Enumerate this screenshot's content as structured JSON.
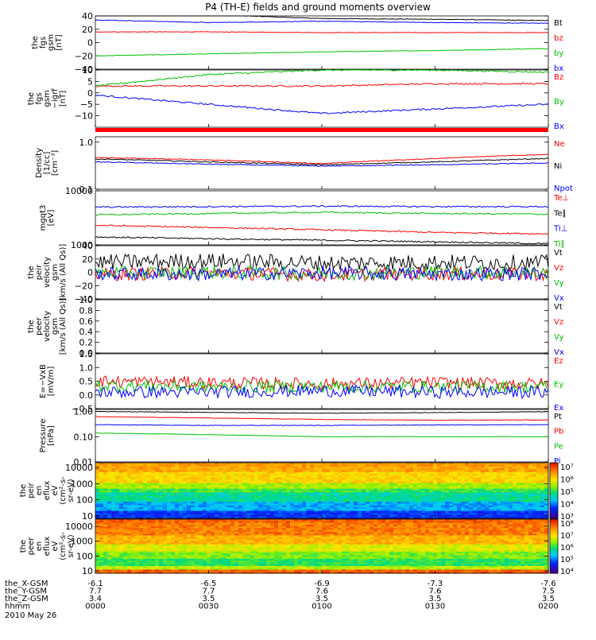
{
  "title": "P4 (TH-E) fields and ground moments overview",
  "date_label": "2010 May 26",
  "orbit_table": {
    "rows": [
      {
        "label": "the_X-GSM",
        "values": [
          "-6.1",
          "-6.5",
          "-6.9",
          "-7.3",
          "-7.6"
        ]
      },
      {
        "label": "the_Y-GSM",
        "values": [
          "7.7",
          "7.7",
          "7.6",
          "7.6",
          "7.5"
        ]
      },
      {
        "label": "the_Z-GSM",
        "values": [
          "3.4",
          "3.5",
          "3.5",
          "3.5",
          "3.5"
        ]
      },
      {
        "label": "hhmm",
        "values": [
          "0000",
          "0030",
          "0100",
          "0130",
          "0200"
        ]
      }
    ]
  },
  "chart_data": [
    {
      "type": "line",
      "panel": "fgs_gsm",
      "ylabel_lines": [
        "the",
        "fgs",
        "gsm",
        "[nT]"
      ],
      "ylim": [
        -40,
        40
      ],
      "yticks": [
        "40",
        "20",
        "0",
        "−20",
        "−40"
      ],
      "ytick_values": [
        40,
        20,
        0,
        -20,
        -40
      ],
      "x": [
        0,
        30,
        60,
        90,
        120
      ],
      "series": [
        {
          "name": "Bt",
          "color": "#000000",
          "values": [
            44,
            42,
            36,
            35,
            33
          ]
        },
        {
          "name": "bz",
          "color": "#ff0000",
          "values": [
            16,
            16,
            15,
            15,
            15
          ]
        },
        {
          "name": "by",
          "color": "#00c000",
          "values": [
            -20,
            -17,
            -14,
            -12,
            -9
          ]
        },
        {
          "name": "bx",
          "color": "#0000ff",
          "values": [
            34,
            30,
            32,
            30,
            29
          ]
        }
      ]
    },
    {
      "type": "line",
      "panel": "fgs_gsm_igrf",
      "ylabel_lines": [
        "the",
        "fgs",
        "gsm",
        "−igrf",
        "[nT]"
      ],
      "ylim": [
        -15,
        10
      ],
      "yticks": [
        "10",
        "5",
        "0",
        "−5",
        "−10"
      ],
      "ytick_values": [
        10,
        5,
        0,
        -5,
        -10
      ],
      "x": [
        0,
        30,
        60,
        90,
        120
      ],
      "series": [
        {
          "name": "Bz",
          "color": "#ff0000",
          "values": [
            3,
            3,
            3,
            4,
            4
          ]
        },
        {
          "name": "By",
          "color": "#00c000",
          "values": [
            3,
            8,
            10,
            10,
            9
          ]
        },
        {
          "name": "Bx",
          "color": "#0000ff",
          "values": [
            -1,
            -5,
            -9,
            -7,
            -5
          ]
        }
      ]
    },
    {
      "type": "line",
      "panel": "density",
      "ylabel_lines": [
        "Density",
        "[1/cc]",
        "[cm⁻³]"
      ],
      "yscale": "log",
      "ylim": [
        0.1,
        1.3
      ],
      "yticks": [
        "1.0",
        "0.1"
      ],
      "ytick_values": [
        1.0,
        0.1
      ],
      "x": [
        0,
        30,
        60,
        90,
        120
      ],
      "series": [
        {
          "name": "Ne",
          "color": "#ff0000",
          "values": [
            0.47,
            0.42,
            0.35,
            0.45,
            0.55
          ]
        },
        {
          "name": "Ni",
          "color": "#000000",
          "values": [
            0.44,
            0.38,
            0.33,
            0.38,
            0.45
          ]
        },
        {
          "name": "Npot",
          "color": "#0000ff",
          "values": [
            0.38,
            0.34,
            0.31,
            0.33,
            0.36
          ]
        }
      ]
    },
    {
      "type": "line",
      "panel": "temperature",
      "ylabel_lines": [
        "mgqt3",
        "[eV]"
      ],
      "yscale": "log",
      "ylim": [
        1000,
        10000
      ],
      "yticks": [
        "10000",
        "1000"
      ],
      "ytick_values": [
        10000,
        1000
      ],
      "x": [
        0,
        30,
        60,
        90,
        120
      ],
      "series": [
        {
          "name": "Te⊥",
          "color": "#ff0000",
          "values": [
            2300,
            2100,
            1900,
            1700,
            1600
          ]
        },
        {
          "name": "Te∥",
          "color": "#000000",
          "values": [
            1400,
            1300,
            1220,
            1140,
            1050
          ]
        },
        {
          "name": "Ti⊥",
          "color": "#0000ff",
          "values": [
            5000,
            5100,
            5200,
            5100,
            5100
          ]
        },
        {
          "name": "Ti∥",
          "color": "#00c000",
          "values": [
            3600,
            3800,
            4000,
            3800,
            3700
          ]
        }
      ]
    },
    {
      "type": "line",
      "panel": "peir_velocity",
      "ylabel_lines": [
        "the",
        "peir",
        "velocity",
        "gsm",
        "[km/s (All Qs)]"
      ],
      "ylim": [
        -40,
        40
      ],
      "yticks": [
        "40",
        "20",
        "0",
        "−20",
        "−40"
      ],
      "ytick_values": [
        40,
        20,
        0,
        -20,
        -40
      ],
      "x": [
        0,
        30,
        60,
        90,
        120
      ],
      "series": [
        {
          "name": "Vt",
          "color": "#000000",
          "values": [
            15,
            17,
            14,
            15,
            14
          ]
        },
        {
          "name": "Vz",
          "color": "#ff0000",
          "values": [
            -3,
            -1,
            -4,
            -2,
            -3
          ]
        },
        {
          "name": "Vy",
          "color": "#00c000",
          "values": [
            -1,
            0,
            -2,
            0,
            -1
          ]
        },
        {
          "name": "Vx",
          "color": "#0000ff",
          "values": [
            -2,
            -3,
            -1,
            -3,
            -2
          ]
        }
      ]
    },
    {
      "type": "line",
      "panel": "peer_velocity",
      "ylabel_lines": [
        "the",
        "peer",
        "velocity",
        "gsm",
        "[km/s (All Qs)]"
      ],
      "ylim": [
        0,
        1
      ],
      "yticks": [
        "1.0",
        "0.8",
        "0.6",
        "0.4",
        "0.2",
        "0.0"
      ],
      "ytick_values": [
        1,
        0.8,
        0.6,
        0.4,
        0.2,
        0
      ],
      "series": [
        {
          "name": "Vt",
          "color": "#000000",
          "values": []
        },
        {
          "name": "Vz",
          "color": "#ff0000",
          "values": []
        },
        {
          "name": "Vy",
          "color": "#00c000",
          "values": []
        },
        {
          "name": "Vx",
          "color": "#0000ff",
          "values": []
        }
      ]
    },
    {
      "type": "line",
      "panel": "e_field",
      "ylabel_lines": [
        "E=−VxB",
        "[mV/m]"
      ],
      "ylim": [
        -0.5,
        1.5
      ],
      "yticks": [
        "1.5",
        "1.0",
        "0.5",
        "0.0",
        "−0.5"
      ],
      "ytick_values": [
        1.5,
        1.0,
        0.5,
        0,
        -0.5
      ],
      "x": [
        0,
        30,
        60,
        90,
        120
      ],
      "series": [
        {
          "name": "Ez",
          "color": "#ff0000",
          "values": [
            0.5,
            0.45,
            0.4,
            0.45,
            0.4
          ]
        },
        {
          "name": "Ey",
          "color": "#00c000",
          "values": [
            0.35,
            0.3,
            0.3,
            0.3,
            0.3
          ]
        },
        {
          "name": "Ex",
          "color": "#0000ff",
          "values": [
            0.1,
            0.1,
            0.15,
            0.1,
            0.1
          ]
        }
      ]
    },
    {
      "type": "line",
      "panel": "pressure",
      "ylabel_lines": [
        "Pressure",
        "[nPa]"
      ],
      "yscale": "log",
      "ylim": [
        0.01,
        1.2
      ],
      "yticks": [
        "1.00",
        "0.10",
        "0.01"
      ],
      "ytick_values": [
        1.0,
        0.1,
        0.01
      ],
      "x": [
        0,
        30,
        60,
        90,
        120
      ],
      "series": [
        {
          "name": "Pt",
          "color": "#000000",
          "values": [
            1.0,
            0.92,
            0.85,
            0.9,
            0.98
          ]
        },
        {
          "name": "Pb",
          "color": "#ff0000",
          "values": [
            0.62,
            0.55,
            0.48,
            0.45,
            0.46
          ]
        },
        {
          "name": "Pe",
          "color": "#00c000",
          "values": [
            0.14,
            0.12,
            0.1,
            0.1,
            0.1
          ]
        },
        {
          "name": "Pi",
          "color": "#0000ff",
          "values": [
            0.3,
            0.28,
            0.28,
            0.29,
            0.3
          ]
        }
      ]
    },
    {
      "type": "heatmap",
      "panel": "peir_eflux",
      "ylabel_lines": [
        "the",
        "peir",
        "en",
        "eflux",
        "eV",
        "(cm²-s-",
        "sr-eV)"
      ],
      "yscale": "log",
      "ylim": [
        7,
        20000
      ],
      "yticks": [
        "10000",
        "1000",
        "100",
        "10"
      ],
      "ytick_values": [
        10000,
        1000,
        100,
        10
      ],
      "colorbar_labels": [
        "10⁷",
        "10⁶",
        "10⁵",
        "10⁴",
        "10³"
      ]
    },
    {
      "type": "heatmap",
      "panel": "peer_eflux",
      "ylabel_lines": [
        "the",
        "peer",
        "en",
        "eflux",
        "eV",
        "(cm²-s-",
        "sr-eV)"
      ],
      "yscale": "log",
      "ylim": [
        7,
        30000
      ],
      "yticks": [
        "10000",
        "1000",
        "100",
        "10"
      ],
      "ytick_values": [
        10000,
        1000,
        100,
        10
      ],
      "colorbar_labels": [
        "10⁸",
        "10⁷",
        "10⁶",
        "10⁵",
        "10⁴"
      ]
    }
  ]
}
